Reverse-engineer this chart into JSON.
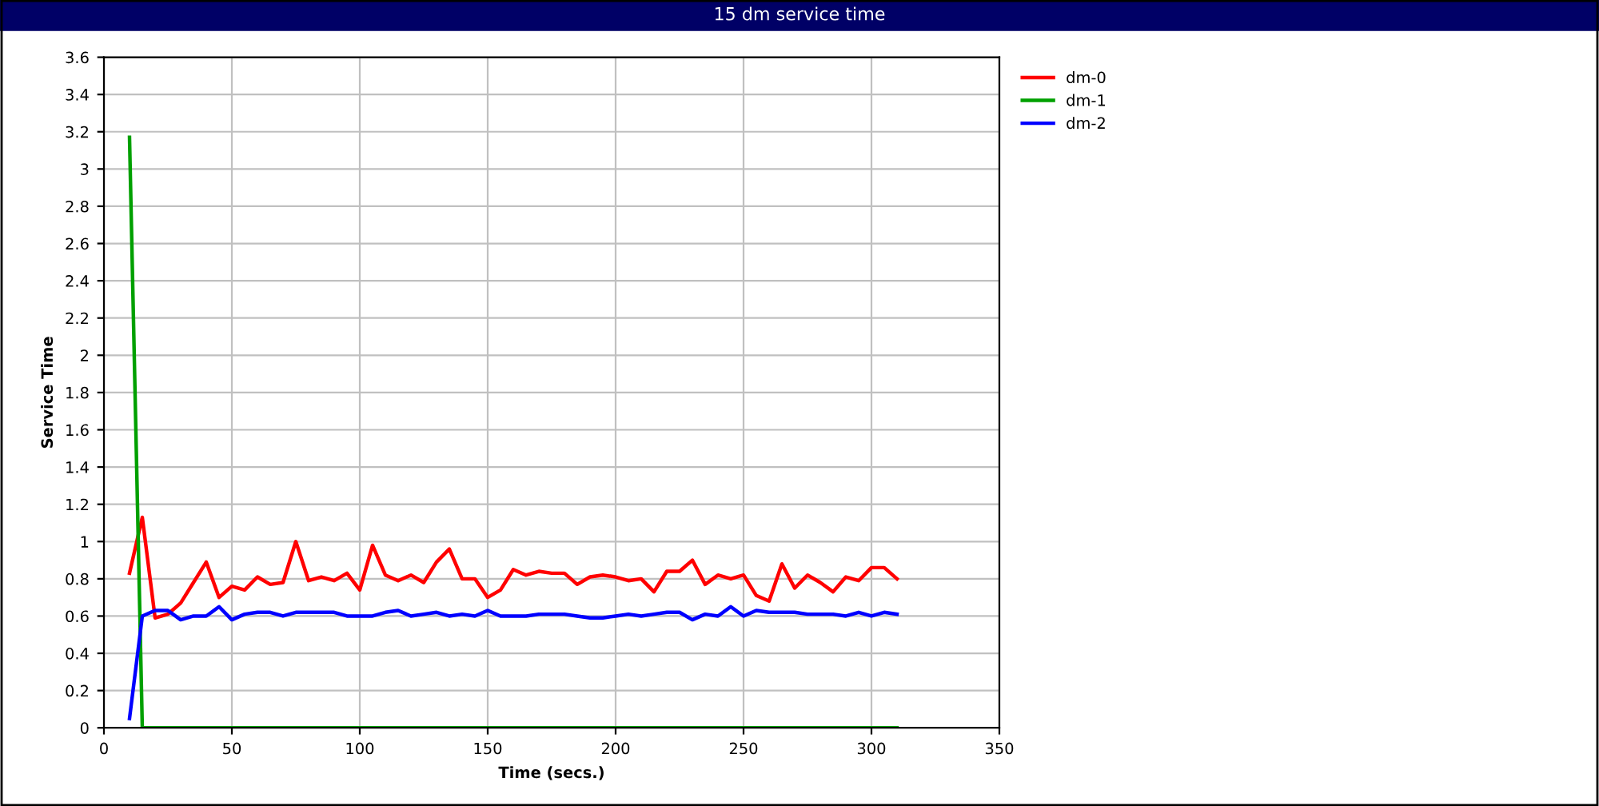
{
  "chart_data": {
    "type": "line",
    "title": "15 dm service time",
    "xlabel": "Time (secs.)",
    "ylabel": "Service Time",
    "x": [
      10,
      15,
      20,
      25,
      30,
      35,
      40,
      45,
      50,
      55,
      60,
      65,
      70,
      75,
      80,
      85,
      90,
      95,
      100,
      105,
      110,
      115,
      120,
      125,
      130,
      135,
      140,
      145,
      150,
      155,
      160,
      165,
      170,
      175,
      180,
      185,
      190,
      195,
      200,
      205,
      210,
      215,
      220,
      225,
      230,
      235,
      240,
      245,
      250,
      255,
      260,
      265,
      270,
      275,
      280,
      285,
      290,
      295,
      300,
      305,
      310
    ],
    "series": [
      {
        "name": "dm-0",
        "color": "#ff0000",
        "values": [
          0.83,
          1.13,
          0.59,
          0.61,
          0.67,
          0.78,
          0.89,
          0.7,
          0.76,
          0.74,
          0.81,
          0.77,
          0.78,
          1.0,
          0.79,
          0.81,
          0.79,
          0.83,
          0.74,
          0.98,
          0.82,
          0.79,
          0.82,
          0.78,
          0.89,
          0.96,
          0.8,
          0.8,
          0.7,
          0.74,
          0.85,
          0.82,
          0.84,
          0.83,
          0.83,
          0.77,
          0.81,
          0.82,
          0.81,
          0.79,
          0.8,
          0.73,
          0.84,
          0.84,
          0.9,
          0.77,
          0.82,
          0.8,
          0.82,
          0.71,
          0.68,
          0.88,
          0.75,
          0.82,
          0.78,
          0.73,
          0.81,
          0.79,
          0.86,
          0.86,
          0.8
        ]
      },
      {
        "name": "dm-1",
        "color": "#00a000",
        "values": [
          3.17,
          0,
          0,
          0,
          0,
          0,
          0,
          0,
          0,
          0,
          0,
          0,
          0,
          0,
          0,
          0,
          0,
          0,
          0,
          0,
          0,
          0,
          0,
          0,
          0,
          0,
          0,
          0,
          0,
          0,
          0,
          0,
          0,
          0,
          0,
          0,
          0,
          0,
          0,
          0,
          0,
          0,
          0,
          0,
          0,
          0,
          0,
          0,
          0,
          0,
          0,
          0,
          0,
          0,
          0,
          0,
          0,
          0,
          0,
          0,
          0
        ]
      },
      {
        "name": "dm-2",
        "color": "#0000ff",
        "values": [
          0.05,
          0.6,
          0.63,
          0.63,
          0.58,
          0.6,
          0.6,
          0.65,
          0.58,
          0.61,
          0.62,
          0.62,
          0.6,
          0.62,
          0.62,
          0.62,
          0.62,
          0.6,
          0.6,
          0.6,
          0.62,
          0.63,
          0.6,
          0.61,
          0.62,
          0.6,
          0.61,
          0.6,
          0.63,
          0.6,
          0.6,
          0.6,
          0.61,
          0.61,
          0.61,
          0.6,
          0.59,
          0.59,
          0.6,
          0.61,
          0.6,
          0.61,
          0.62,
          0.62,
          0.58,
          0.61,
          0.6,
          0.65,
          0.6,
          0.63,
          0.62,
          0.62,
          0.62,
          0.61,
          0.61,
          0.61,
          0.6,
          0.62,
          0.6,
          0.62,
          0.61
        ]
      }
    ],
    "xlim": [
      0,
      350
    ],
    "xticks": [
      0,
      50,
      100,
      150,
      200,
      250,
      300,
      350
    ],
    "ylim": [
      0,
      3.6
    ],
    "yticks": [
      0,
      {
        "value": 0.2,
        "label": "0.2"
      },
      {
        "value": 0.4,
        "label": "0.4"
      },
      {
        "value": 0.6,
        "label": "0.6"
      },
      {
        "value": 0.8,
        "label": "0.8"
      },
      1,
      {
        "value": 1.2,
        "label": "1.2"
      },
      {
        "value": 1.4,
        "label": "1.4"
      },
      {
        "value": 1.6,
        "label": "1.6"
      },
      {
        "value": 1.8,
        "label": "1.8"
      },
      2,
      {
        "value": 2.2,
        "label": "2.2"
      },
      {
        "value": 2.4,
        "label": "2.4"
      },
      {
        "value": 2.6,
        "label": "2.6"
      },
      {
        "value": 2.8,
        "label": "2.8"
      },
      3,
      {
        "value": 3.2,
        "label": "3.2"
      },
      {
        "value": 3.4,
        "label": "3.4"
      },
      {
        "value": 3.6,
        "label": "3.6"
      }
    ],
    "grid": true,
    "legend": "top right",
    "marker": "none",
    "line_style": "solid"
  }
}
